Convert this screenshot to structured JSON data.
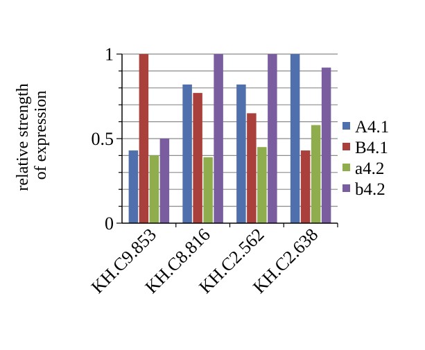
{
  "chart_data": {
    "type": "bar",
    "title": "",
    "xlabel": "",
    "ylabel_lines": [
      "relative strength",
      "of expression"
    ],
    "categories": [
      "KH.C9.853",
      "KH.C8.816",
      "KH.C2.562",
      "KH.C2.638"
    ],
    "series": [
      {
        "name": "A4.1",
        "color": "#4f6fad",
        "values": [
          0.43,
          0.82,
          0.82,
          1.0
        ]
      },
      {
        "name": "B4.1",
        "color": "#a9403c",
        "values": [
          1.0,
          0.77,
          0.65,
          0.43
        ]
      },
      {
        "name": "a4.2",
        "color": "#90ad4e",
        "values": [
          0.4,
          0.39,
          0.45,
          0.58
        ]
      },
      {
        "name": "b4.2",
        "color": "#7a5d9e",
        "values": [
          0.5,
          1.0,
          1.0,
          0.92
        ]
      }
    ],
    "ylim": [
      0,
      1
    ],
    "y_ticks": [
      "0",
      "0.5",
      "1"
    ],
    "legend_position": "right",
    "grid": true
  }
}
